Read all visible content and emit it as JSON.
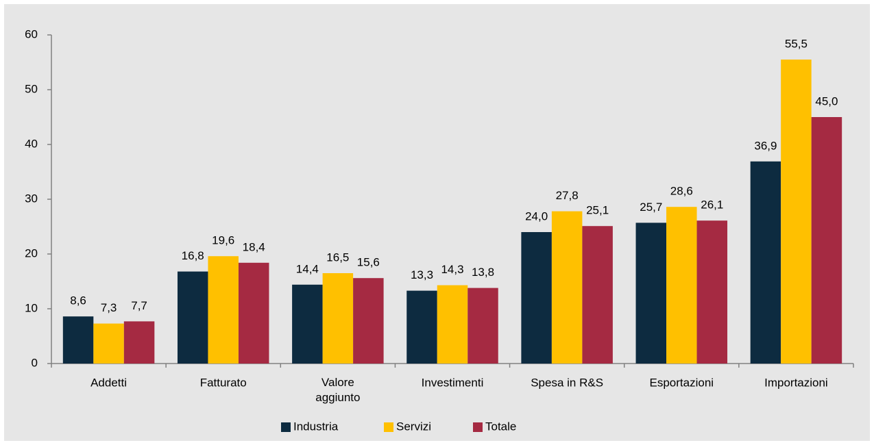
{
  "chart_data": {
    "type": "bar",
    "categories": [
      "Addetti",
      "Fatturato",
      "Valore aggiunto",
      "Investimenti",
      "Spesa in R&S",
      "Esportazioni",
      "Importazioni"
    ],
    "series": [
      {
        "name": "Industria",
        "color": "#0d2b40",
        "values": [
          8.6,
          16.8,
          14.4,
          13.3,
          24.0,
          25.7,
          36.9
        ],
        "value_labels": [
          "8,6",
          "16,8",
          "14,4",
          "13,3",
          "24,0",
          "25,7",
          "36,9"
        ]
      },
      {
        "name": "Servizi",
        "color": "#ffc000",
        "values": [
          7.3,
          19.6,
          16.5,
          14.3,
          27.8,
          28.6,
          55.5
        ],
        "value_labels": [
          "7,3",
          "19,6",
          "16,5",
          "14,3",
          "27,8",
          "28,6",
          "55,5"
        ]
      },
      {
        "name": "Totale",
        "color": "#a52a42",
        "values": [
          7.7,
          18.4,
          15.6,
          13.8,
          25.1,
          26.1,
          45.0
        ],
        "value_labels": [
          "7,7",
          "18,4",
          "15,6",
          "13,8",
          "25,1",
          "26,1",
          "45,0"
        ]
      }
    ],
    "ylim": [
      0,
      60
    ],
    "yticks": [
      0,
      10,
      20,
      30,
      40,
      50,
      60
    ],
    "legend": "bottom"
  }
}
